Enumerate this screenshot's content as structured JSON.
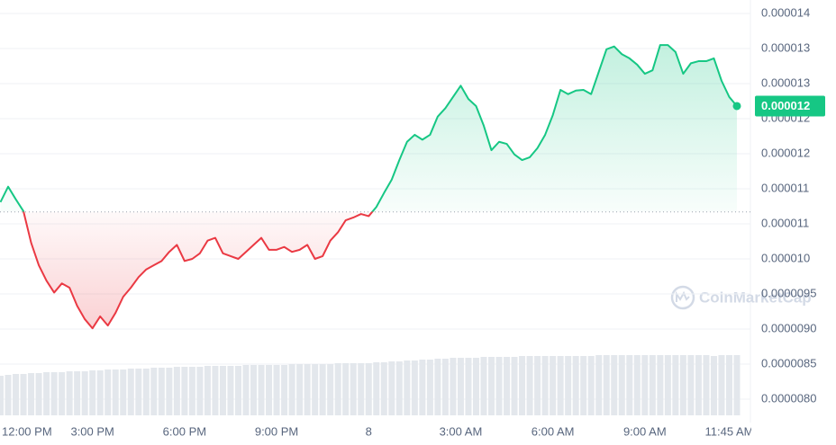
{
  "chart_data": {
    "type": "line",
    "up_color": "#16c784",
    "down_color": "#ea3943",
    "volume_color": "#e3e7ec",
    "grid": true,
    "watermark": "CoinMarketCap",
    "base_value": 1.067e-05,
    "current_price_label": "0.000012",
    "ylim": [
      8e-06,
      1.35e-05
    ],
    "yticks": [
      {
        "value": 1.35e-05,
        "label": "0.000014"
      },
      {
        "value": 1.3e-05,
        "label": "0.000013"
      },
      {
        "value": 1.25e-05,
        "label": "0.000013"
      },
      {
        "value": 1.2e-05,
        "label": "0.000012"
      },
      {
        "value": 1.15e-05,
        "label": "0.000012"
      },
      {
        "value": 1.1e-05,
        "label": "0.000011"
      },
      {
        "value": 1.05e-05,
        "label": "0.000011"
      },
      {
        "value": 1e-05,
        "label": "0.000010"
      },
      {
        "value": 9.5e-06,
        "label": "0.0000095"
      },
      {
        "value": 9e-06,
        "label": "0.0000090"
      },
      {
        "value": 8.5e-06,
        "label": "0.0000085"
      },
      {
        "value": 8e-06,
        "label": "0.0000080"
      }
    ],
    "categories": [
      "12:00 PM",
      null,
      null,
      null,
      null,
      null,
      null,
      null,
      null,
      null,
      null,
      null,
      "3:00 PM",
      null,
      null,
      null,
      null,
      null,
      null,
      null,
      null,
      null,
      null,
      null,
      "6:00 PM",
      null,
      null,
      null,
      null,
      null,
      null,
      null,
      null,
      null,
      null,
      null,
      "9:00 PM",
      null,
      null,
      null,
      null,
      null,
      null,
      null,
      null,
      null,
      null,
      null,
      "8",
      null,
      null,
      null,
      null,
      null,
      null,
      null,
      null,
      null,
      null,
      null,
      "3:00 AM",
      null,
      null,
      null,
      null,
      null,
      null,
      null,
      null,
      null,
      null,
      null,
      "6:00 AM",
      null,
      null,
      null,
      null,
      null,
      null,
      null,
      null,
      null,
      null,
      null,
      "9:00 AM",
      null,
      null,
      null,
      null,
      null,
      null,
      null,
      null,
      null,
      null,
      "11:45 AM",
      null
    ],
    "values": [
      1.081e-05,
      1.103e-05,
      1.085e-05,
      1.068e-05,
      1.023e-05,
      9.91e-06,
      9.69e-06,
      9.52e-06,
      9.65e-06,
      9.59e-06,
      9.33e-06,
      9.14e-06,
      9.01e-06,
      9.18e-06,
      9.05e-06,
      9.23e-06,
      9.46e-06,
      9.59e-06,
      9.74e-06,
      9.85e-06,
      9.91e-06,
      9.97e-06,
      1.01e-05,
      1.02e-05,
      9.97e-06,
      1e-05,
      1.008e-05,
      1.026e-05,
      1.03e-05,
      1.008e-05,
      1.004e-05,
      1e-05,
      1.01e-05,
      1.02e-05,
      1.03e-05,
      1.013e-05,
      1.013e-05,
      1.017e-05,
      1.01e-05,
      1.013e-05,
      1.02e-05,
      1e-05,
      1.004e-05,
      1.026e-05,
      1.038e-05,
      1.055e-05,
      1.059e-05,
      1.064e-05,
      1.061e-05,
      1.074e-05,
      1.094e-05,
      1.113e-05,
      1.141e-05,
      1.167e-05,
      1.177e-05,
      1.17e-05,
      1.177e-05,
      1.203e-05,
      1.215e-05,
      1.231e-05,
      1.247e-05,
      1.228e-05,
      1.218e-05,
      1.19e-05,
      1.155e-05,
      1.167e-05,
      1.164e-05,
      1.149e-05,
      1.141e-05,
      1.145e-05,
      1.158e-05,
      1.177e-05,
      1.205e-05,
      1.241e-05,
      1.235e-05,
      1.24e-05,
      1.241e-05,
      1.235e-05,
      1.267e-05,
      1.299e-05,
      1.303e-05,
      1.292e-05,
      1.286e-05,
      1.277e-05,
      1.264e-05,
      1.269e-05,
      1.305e-05,
      1.305e-05,
      1.295e-05,
      1.264e-05,
      1.279e-05,
      1.282e-05,
      1.282e-05,
      1.286e-05,
      1.254e-05,
      1.231e-05,
      1.218e-05
    ],
    "volume": [
      44,
      45,
      46,
      46,
      47,
      47,
      48,
      48,
      48,
      49,
      49,
      49,
      50,
      50,
      51,
      51,
      51,
      52,
      52,
      52,
      53,
      53,
      53,
      54,
      54,
      54,
      54,
      55,
      55,
      55,
      55,
      55,
      56,
      56,
      56,
      56,
      56,
      56,
      57,
      57,
      57,
      57,
      57,
      57,
      58,
      58,
      58,
      58,
      58,
      59,
      59,
      60,
      60,
      61,
      61,
      62,
      62,
      63,
      63,
      64,
      64,
      64,
      64,
      65,
      65,
      65,
      65,
      65,
      66,
      66,
      66,
      66,
      66,
      66,
      66,
      66,
      66,
      66,
      67,
      67,
      67,
      67,
      67,
      67,
      67,
      67,
      67,
      67,
      67,
      67,
      67,
      67,
      67,
      66,
      67,
      67,
      67
    ]
  }
}
